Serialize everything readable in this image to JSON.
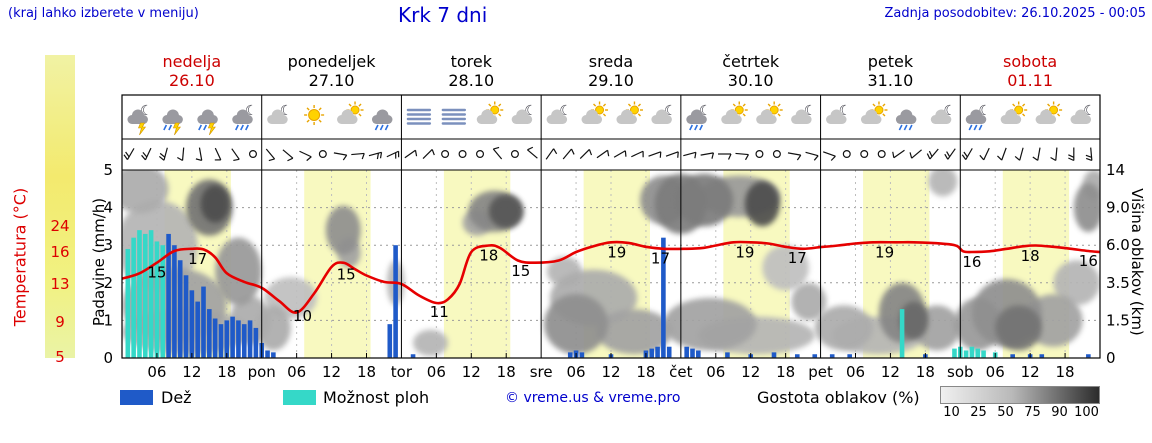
{
  "header": {
    "hint": "(kraj lahko izberete v meniju)",
    "title": "Krk 7 dni",
    "updated": "Zadnja posodobitev: 26.10.2025 - 00:05"
  },
  "axes": {
    "temp_label": "Temperatura (°C)",
    "precip_label": "Padavine (mm/h)",
    "cloud_label": "Višina oblakov (km)",
    "precip_ticks": [
      "0",
      "1",
      "2",
      "3",
      "4",
      "5"
    ],
    "cloud_ticks": [
      "0",
      "1.5",
      "3.5",
      "6.0",
      "9.0",
      "14"
    ],
    "temp_ticks": [
      5,
      9,
      13,
      16,
      24
    ]
  },
  "days": [
    {
      "name": "nedelja",
      "date": "26.10",
      "weekend": true
    },
    {
      "name": "ponedeljek",
      "date": "27.10",
      "weekend": false
    },
    {
      "name": "torek",
      "date": "28.10",
      "weekend": false
    },
    {
      "name": "sreda",
      "date": "29.10",
      "weekend": false
    },
    {
      "name": "četrtek",
      "date": "30.10",
      "weekend": false
    },
    {
      "name": "petek",
      "date": "31.10",
      "weekend": false
    },
    {
      "name": "sobota",
      "date": "01.11",
      "weekend": true
    }
  ],
  "x_axis": {
    "hour_ticks": [
      "06",
      "12",
      "18"
    ],
    "day_abbrevs": [
      "pon",
      "tor",
      "sre",
      "čet",
      "pet",
      "sob"
    ]
  },
  "legend": {
    "rain": "Dež",
    "shower": "Možnost ploh",
    "copyright": "© vreme.us & vreme.pro",
    "cloud_density": "Gostota oblakov (%)",
    "density_ticks": [
      "10",
      "25",
      "50",
      "75",
      "90",
      "100"
    ]
  },
  "colors": {
    "blue_text": "#0000cc",
    "red_text": "#cc0000",
    "temp_line": "#e60000",
    "temp_axis": "#dd0000",
    "rain": "#1f5ac8",
    "shower": "#35d8c8",
    "day_band": "#f8f9c0"
  },
  "chart_data": {
    "type": "meteogram",
    "hours_total": 168,
    "day_band_hours": [
      7.3,
      18.7
    ],
    "precip_axis_range": [
      0,
      5
    ],
    "cloud_height_ticks_km": [
      "0",
      "1.5",
      "3.5",
      "6.0",
      "9.0",
      "14"
    ],
    "temperature": {
      "unit": "°C",
      "scale_anchors": [
        [
          5,
          357
        ],
        [
          9,
          322
        ],
        [
          13,
          284
        ],
        [
          16,
          252
        ],
        [
          24,
          226
        ]
      ],
      "series": [
        [
          0,
          13.5
        ],
        [
          3,
          14
        ],
        [
          6,
          15
        ],
        [
          9,
          16.3
        ],
        [
          12,
          17
        ],
        [
          14,
          16.8
        ],
        [
          16,
          15.5
        ],
        [
          18,
          14
        ],
        [
          21,
          13.2
        ],
        [
          24,
          12.6
        ],
        [
          27,
          11.2
        ],
        [
          30,
          10
        ],
        [
          33,
          12
        ],
        [
          36,
          14.6
        ],
        [
          38,
          15
        ],
        [
          40,
          14.4
        ],
        [
          42,
          13.8
        ],
        [
          45,
          13.2
        ],
        [
          48,
          13
        ],
        [
          51,
          11.8
        ],
        [
          54,
          11
        ],
        [
          56,
          11.4
        ],
        [
          58,
          13
        ],
        [
          60,
          16
        ],
        [
          63,
          18
        ],
        [
          65,
          17.2
        ],
        [
          68,
          15.2
        ],
        [
          71,
          15
        ],
        [
          75,
          15.2
        ],
        [
          78,
          16
        ],
        [
          81,
          17.8
        ],
        [
          84,
          19
        ],
        [
          87,
          18.8
        ],
        [
          90,
          17.6
        ],
        [
          93,
          17
        ],
        [
          97,
          17
        ],
        [
          100,
          17.3
        ],
        [
          102,
          18
        ],
        [
          105,
          19
        ],
        [
          108,
          19
        ],
        [
          111,
          18.6
        ],
        [
          114,
          17.6
        ],
        [
          117,
          17
        ],
        [
          120,
          17.5
        ],
        [
          123,
          18
        ],
        [
          126,
          18.6
        ],
        [
          129,
          19
        ],
        [
          133,
          19
        ],
        [
          136,
          19
        ],
        [
          139,
          18.8
        ],
        [
          142,
          18.4
        ],
        [
          143.5,
          17.8
        ],
        [
          144.5,
          16.2
        ],
        [
          146,
          16
        ],
        [
          149,
          16.2
        ],
        [
          152,
          17
        ],
        [
          155,
          17.8
        ],
        [
          157,
          18
        ],
        [
          160,
          17.6
        ],
        [
          163,
          17
        ],
        [
          166,
          16.3
        ],
        [
          168,
          16
        ]
      ],
      "point_labels": [
        [
          6,
          "15"
        ],
        [
          13,
          "17"
        ],
        [
          31,
          "10"
        ],
        [
          38.5,
          "15"
        ],
        [
          54.5,
          "11"
        ],
        [
          63,
          "18"
        ],
        [
          68.5,
          "15"
        ],
        [
          85,
          "19"
        ],
        [
          92.5,
          "17"
        ],
        [
          107,
          "19"
        ],
        [
          116,
          "17"
        ],
        [
          131,
          "19"
        ],
        [
          146,
          "16"
        ],
        [
          156,
          "18"
        ],
        [
          166,
          "16"
        ]
      ]
    },
    "precipitation": {
      "unit": "mm/h",
      "bars": [
        [
          1,
          2.9,
          "s"
        ],
        [
          2,
          3.2,
          "s"
        ],
        [
          3,
          3.4,
          "s"
        ],
        [
          4,
          3.3,
          "s"
        ],
        [
          5,
          3.4,
          "s"
        ],
        [
          6,
          3.1,
          "s"
        ],
        [
          7,
          3.0,
          "s"
        ],
        [
          8,
          3.3,
          "r"
        ],
        [
          9,
          3.0,
          "r"
        ],
        [
          10,
          2.6,
          "r"
        ],
        [
          11,
          2.2,
          "r"
        ],
        [
          12,
          1.8,
          "r"
        ],
        [
          13,
          1.5,
          "r"
        ],
        [
          14,
          1.9,
          "r"
        ],
        [
          15,
          1.3,
          "r"
        ],
        [
          16,
          1.05,
          "r"
        ],
        [
          17,
          0.9,
          "r"
        ],
        [
          18,
          1.0,
          "r"
        ],
        [
          19,
          1.1,
          "r"
        ],
        [
          20,
          1.0,
          "r"
        ],
        [
          21,
          0.9,
          "r"
        ],
        [
          22,
          1.0,
          "r"
        ],
        [
          23,
          0.8,
          "r"
        ],
        [
          24,
          0.4,
          "r"
        ],
        [
          25,
          0.2,
          "r"
        ],
        [
          26,
          0.15,
          "r"
        ],
        [
          46,
          0.9,
          "r"
        ],
        [
          47,
          3.0,
          "r"
        ],
        [
          50,
          0.1,
          "r"
        ],
        [
          77,
          0.15,
          "r"
        ],
        [
          78,
          0.2,
          "r"
        ],
        [
          79,
          0.15,
          "r"
        ],
        [
          84,
          0.1,
          "r"
        ],
        [
          90,
          0.2,
          "r"
        ],
        [
          91,
          0.25,
          "r"
        ],
        [
          92,
          0.3,
          "r"
        ],
        [
          93,
          3.2,
          "r"
        ],
        [
          94,
          0.3,
          "r"
        ],
        [
          97,
          0.3,
          "r"
        ],
        [
          98,
          0.25,
          "r"
        ],
        [
          99,
          0.2,
          "r"
        ],
        [
          104,
          0.15,
          "r"
        ],
        [
          108,
          0.1,
          "r"
        ],
        [
          112,
          0.15,
          "r"
        ],
        [
          116,
          0.1,
          "r"
        ],
        [
          119,
          0.1,
          "r"
        ],
        [
          122,
          0.1,
          "r"
        ],
        [
          125,
          0.1,
          "r"
        ],
        [
          134,
          1.3,
          "s"
        ],
        [
          138,
          0.1,
          "r"
        ],
        [
          143,
          0.25,
          "s"
        ],
        [
          144,
          0.3,
          "s"
        ],
        [
          145,
          0.2,
          "s"
        ],
        [
          146,
          0.3,
          "s"
        ],
        [
          147,
          0.25,
          "s"
        ],
        [
          148,
          0.2,
          "s"
        ],
        [
          150,
          0.15,
          "s"
        ],
        [
          153,
          0.1,
          "r"
        ],
        [
          156,
          0.1,
          "r"
        ],
        [
          158,
          0.1,
          "r"
        ],
        [
          166,
          0.1,
          "r"
        ]
      ]
    },
    "clouds": [
      [
        3,
        10,
        4.5,
        1.3,
        0.35
      ],
      [
        6,
        14,
        3.0,
        2.4,
        0.3
      ],
      [
        9,
        18,
        1.4,
        2.0,
        0.4
      ],
      [
        11,
        22,
        0.7,
        1.2,
        0.35
      ],
      [
        15,
        8,
        4.0,
        1.5,
        0.65
      ],
      [
        16,
        5,
        4.1,
        1.0,
        0.85
      ],
      [
        20,
        8,
        2.3,
        1.8,
        0.45
      ],
      [
        22,
        7,
        1.0,
        1.3,
        0.35
      ],
      [
        26,
        6,
        0.8,
        1.2,
        0.35
      ],
      [
        29,
        9,
        1.6,
        1.1,
        0.25
      ],
      [
        38,
        6,
        3.4,
        1.3,
        0.5
      ],
      [
        39,
        4,
        2.8,
        0.8,
        0.4
      ],
      [
        47,
        3,
        2.0,
        1.2,
        0.3
      ],
      [
        53,
        6,
        0.4,
        0.7,
        0.3
      ],
      [
        61,
        5,
        3.6,
        0.7,
        0.4
      ],
      [
        64,
        9,
        3.9,
        1.1,
        0.55
      ],
      [
        66,
        6,
        3.9,
        0.9,
        0.8
      ],
      [
        76,
        6,
        2.3,
        0.8,
        0.3
      ],
      [
        78,
        11,
        0.9,
        1.6,
        0.5
      ],
      [
        81,
        15,
        1.6,
        1.5,
        0.35
      ],
      [
        88,
        13,
        0.7,
        1.2,
        0.4
      ],
      [
        93,
        8,
        4.2,
        1.3,
        0.5
      ],
      [
        96,
        9,
        4.1,
        1.6,
        0.6
      ],
      [
        100,
        10,
        4.2,
        1.4,
        0.6
      ],
      [
        106,
        14,
        4.3,
        1.1,
        0.45
      ],
      [
        110,
        6,
        4.1,
        1.2,
        0.85
      ],
      [
        101,
        16,
        0.9,
        1.4,
        0.4
      ],
      [
        109,
        20,
        0.6,
        1.0,
        0.3
      ],
      [
        114,
        8,
        2.4,
        1.2,
        0.25
      ],
      [
        118,
        6,
        1.5,
        1.0,
        0.35
      ],
      [
        124,
        10,
        0.8,
        1.2,
        0.35
      ],
      [
        130,
        16,
        0.6,
        1.0,
        0.3
      ],
      [
        134,
        8,
        1.2,
        1.6,
        0.55
      ],
      [
        136,
        5,
        1.0,
        1.0,
        0.7
      ],
      [
        140,
        8,
        0.8,
        1.2,
        0.4
      ],
      [
        141,
        5,
        4.7,
        0.8,
        0.3
      ],
      [
        147,
        8,
        0.9,
        1.4,
        0.45
      ],
      [
        152,
        12,
        1.2,
        1.8,
        0.5
      ],
      [
        154,
        8,
        0.8,
        1.2,
        0.65
      ],
      [
        160,
        10,
        1.0,
        1.4,
        0.4
      ],
      [
        164,
        8,
        2.0,
        1.2,
        0.3
      ],
      [
        166,
        5,
        4.0,
        1.3,
        0.5
      ],
      [
        167,
        4,
        4.6,
        0.8,
        0.35
      ]
    ],
    "wind_barbs": [
      [
        1.5,
        210,
        2
      ],
      [
        4.5,
        205,
        2
      ],
      [
        7.5,
        195,
        2
      ],
      [
        10.5,
        185,
        1
      ],
      [
        13.5,
        170,
        1
      ],
      [
        16.5,
        155,
        1
      ],
      [
        19.5,
        145,
        1
      ],
      [
        22.5,
        0,
        0
      ],
      [
        25.5,
        140,
        1
      ],
      [
        28.5,
        130,
        1
      ],
      [
        31.5,
        115,
        1
      ],
      [
        34.5,
        0,
        0
      ],
      [
        37.5,
        100,
        1
      ],
      [
        40.5,
        85,
        1
      ],
      [
        43.5,
        75,
        2
      ],
      [
        46.5,
        65,
        2
      ],
      [
        49.5,
        55,
        1
      ],
      [
        52.5,
        45,
        1
      ],
      [
        55.5,
        0,
        0
      ],
      [
        58.5,
        0,
        0
      ],
      [
        61.5,
        0,
        0
      ],
      [
        64.5,
        320,
        1
      ],
      [
        67.5,
        0,
        0
      ],
      [
        70.5,
        310,
        1
      ],
      [
        73.5,
        35,
        1
      ],
      [
        76.5,
        40,
        1
      ],
      [
        79.5,
        45,
        1
      ],
      [
        82.5,
        55,
        1
      ],
      [
        85.5,
        60,
        1
      ],
      [
        88.5,
        65,
        1
      ],
      [
        91.5,
        70,
        1
      ],
      [
        94.5,
        70,
        1
      ],
      [
        97.5,
        75,
        1
      ],
      [
        100.5,
        80,
        1
      ],
      [
        103.5,
        90,
        1
      ],
      [
        106.5,
        95,
        1
      ],
      [
        109.5,
        0,
        0
      ],
      [
        112.5,
        0,
        0
      ],
      [
        115.5,
        100,
        1
      ],
      [
        118.5,
        105,
        1
      ],
      [
        121.5,
        110,
        1
      ],
      [
        124.5,
        0,
        0
      ],
      [
        127.5,
        0,
        0
      ],
      [
        130.5,
        0,
        0
      ],
      [
        133.5,
        235,
        1
      ],
      [
        136.5,
        230,
        1
      ],
      [
        139.5,
        220,
        2
      ],
      [
        142.5,
        215,
        2
      ],
      [
        145.5,
        210,
        2
      ],
      [
        148.5,
        205,
        1
      ],
      [
        151.5,
        200,
        1
      ],
      [
        154.5,
        195,
        1
      ],
      [
        157.5,
        190,
        1
      ],
      [
        160.5,
        185,
        1
      ],
      [
        163.5,
        180,
        2
      ],
      [
        166.5,
        175,
        2
      ]
    ],
    "weather_icons": [
      [
        "moon-lightning",
        "cloud-lightning-rain",
        "cloud-lightning-rain",
        "moon-cloud-rain"
      ],
      [
        "moon-cloud",
        "sun",
        "sun-cloud",
        "cloud-rain"
      ],
      [
        "fog",
        "fog",
        "sun-cloud",
        "moon-cloud"
      ],
      [
        "moon-cloud",
        "sun-cloud",
        "sun-cloud",
        "moon-cloud"
      ],
      [
        "moon-cloud-rain",
        "sun-cloud",
        "sun-cloud",
        "moon-cloud"
      ],
      [
        "moon-cloud",
        "sun-cloud",
        "cloud-rain",
        "moon-cloud"
      ],
      [
        "moon-cloud-rain",
        "sun-cloud",
        "sun-cloud",
        "moon-cloud"
      ]
    ]
  }
}
